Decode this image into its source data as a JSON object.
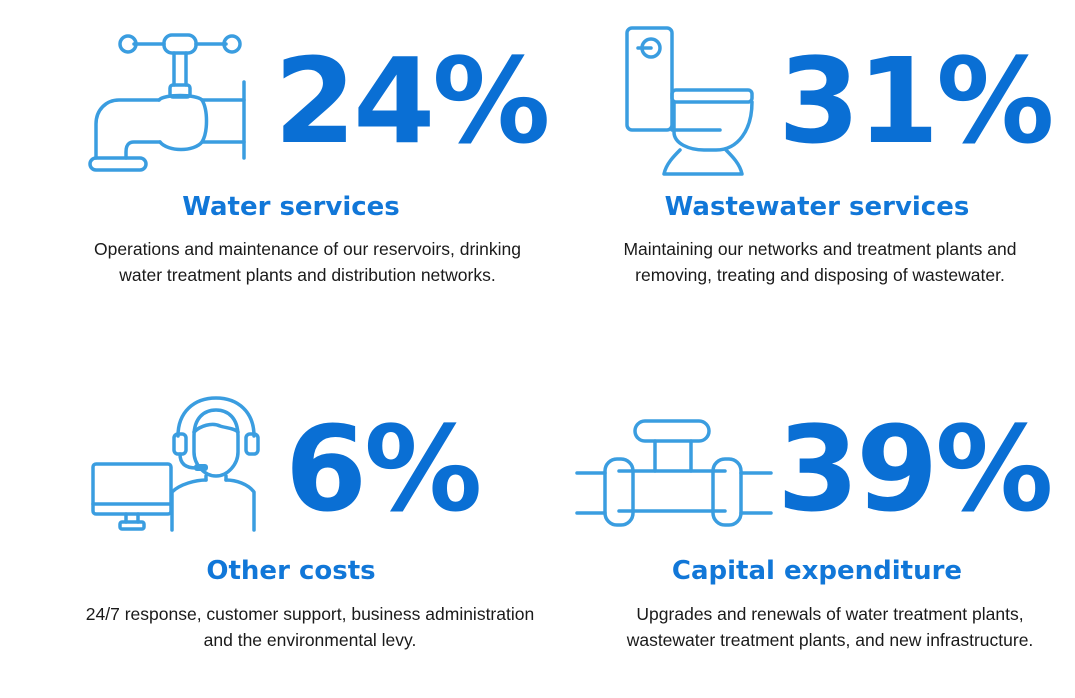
{
  "colors": {
    "accent": "#0a6fd4",
    "icon": "#3a9de0",
    "text": "#1a1a1a"
  },
  "stats": [
    {
      "icon": "faucet-icon",
      "percent": "24%",
      "title": "Water services",
      "line1": "Operations and maintenance of our reservoirs, drinking",
      "line2": "water treatment plants and distribution networks."
    },
    {
      "icon": "toilet-icon",
      "percent": "31%",
      "title": "Wastewater services",
      "line1": "Maintaining our networks and treatment plants and",
      "line2": "removing, treating and disposing of wastewater."
    },
    {
      "icon": "support-agent-icon",
      "percent": "6%",
      "title": "Other costs",
      "line1": "24/7 response, customer support, business administration",
      "line2": "and the environmental levy."
    },
    {
      "icon": "pipe-icon",
      "percent": "39%",
      "title": "Capital expenditure",
      "line1": "Upgrades and renewals of water treatment plants,",
      "line2": "wastewater treatment plants, and new infrastructure."
    }
  ]
}
